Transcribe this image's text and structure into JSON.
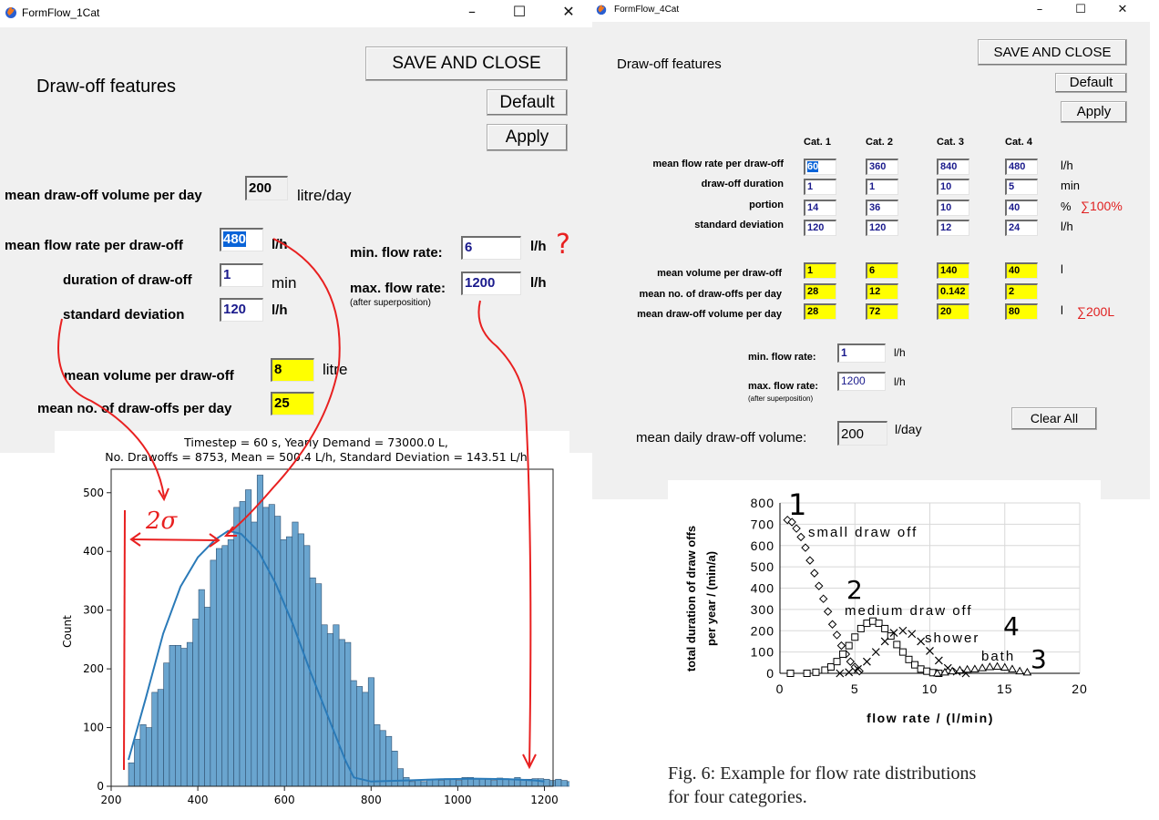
{
  "win1": {
    "title": "FormFlow_1Cat",
    "heading": "Draw-off features",
    "save_close": "SAVE AND CLOSE",
    "default": "Default",
    "apply": "Apply",
    "vol_day_label": "mean draw-off volume per day",
    "vol_day_value": "200",
    "vol_day_unit": "litre/day",
    "flow_label": "mean flow rate  per draw-off",
    "flow_value": "480",
    "flow_unit": "l/h",
    "dur_label": "duration of draw-off",
    "dur_value": "1",
    "dur_unit": "min",
    "std_label": "standard deviation",
    "std_value": "120",
    "std_unit": "l/h",
    "min_label": "min. flow rate:",
    "min_value": "6",
    "min_unit": "l/h",
    "max_label": "max. flow rate:",
    "max_sub": "(after superposition)",
    "max_value": "1200",
    "max_unit": "l/h",
    "meanvol_label": "mean volume per draw-off",
    "meanvol_value": "8",
    "meanvol_unit": "litre",
    "meanno_label": "mean no. of draw-offs per day",
    "meanno_value": "25"
  },
  "win2": {
    "title": "FormFlow_4Cat",
    "heading": "Draw-off features",
    "save_close": "SAVE AND CLOSE",
    "default": "Default",
    "apply": "Apply",
    "cat_headers": [
      "Cat. 1",
      "Cat. 2",
      "Cat. 3",
      "Cat. 4"
    ],
    "rows_top": [
      {
        "label": "mean flow rate per draw-off",
        "values": [
          "60",
          "360",
          "840",
          "480"
        ],
        "unit": "l/h",
        "note": ""
      },
      {
        "label": "draw-off duration",
        "values": [
          "1",
          "1",
          "10",
          "5"
        ],
        "unit": "min",
        "note": ""
      },
      {
        "label": "portion",
        "values": [
          "14",
          "36",
          "10",
          "40"
        ],
        "unit": "%",
        "note": "∑100%"
      },
      {
        "label": "standard deviation",
        "values": [
          "120",
          "120",
          "12",
          "24"
        ],
        "unit": "l/h",
        "note": ""
      }
    ],
    "rows_bottom": [
      {
        "label": "mean volume per draw-off",
        "values": [
          "1",
          "6",
          "140",
          "40"
        ],
        "unit": "l",
        "note": ""
      },
      {
        "label": "mean no. of draw-offs per day",
        "values": [
          "28",
          "12",
          "0.142",
          "2"
        ],
        "unit": "",
        "note": ""
      },
      {
        "label": "mean draw-off volume per day",
        "values": [
          "28",
          "72",
          "20",
          "80"
        ],
        "unit": "l",
        "note": "∑200L"
      }
    ],
    "min_label": "min. flow rate:",
    "min_value": "1",
    "min_unit": "l/h",
    "max_label": "max. flow rate:",
    "max_sub": "(after superposition)",
    "max_value": "1200",
    "max_unit": "l/h",
    "clear_all": "Clear All",
    "daily_label": "mean daily draw-off volume:",
    "daily_value": "200",
    "daily_unit": "l/day"
  },
  "histogram": {
    "title_line1": "Timestep = 60 s, Yearly Demand = 73000.0 L,",
    "title_line2": "No. Drawoffs = 8753, Mean = 500.4 L/h, Standard Deviation = 143.51 L/h",
    "ylabel": "Count",
    "annotation_2sigma": "2σ",
    "annotation_q": "?"
  },
  "paper_fig": {
    "ylabel_line1": "total duration of draw offs",
    "ylabel_line2": "per year / (min/a)",
    "xlabel": "flow rate / (l/min)",
    "labels": [
      "small draw off",
      "medium draw off",
      "shower",
      "bath"
    ],
    "handwritten": [
      "1",
      "2",
      "4",
      "3"
    ],
    "caption": "Fig. 6: Example for flow rate distributions for four categories."
  },
  "chart_data": [
    {
      "type": "bar",
      "title": "Timestep = 60 s, Yearly Demand = 73000.0 L, No. Drawoffs = 8753, Mean = 500.4 L/h, Standard Deviation = 143.51 L/h",
      "xlabel": "",
      "ylabel": "Count",
      "xlim": [
        200,
        1220
      ],
      "ylim": [
        0,
        540
      ],
      "xticks": [
        200,
        400,
        600,
        800,
        1000,
        1200
      ],
      "yticks": [
        0,
        100,
        200,
        300,
        400,
        500
      ],
      "bin_start": 240,
      "bin_width": 13.5,
      "values": [
        40,
        80,
        105,
        100,
        160,
        165,
        210,
        240,
        240,
        235,
        245,
        285,
        335,
        305,
        385,
        405,
        410,
        420,
        475,
        485,
        505,
        450,
        530,
        475,
        480,
        460,
        420,
        425,
        450,
        430,
        410,
        355,
        345,
        275,
        260,
        275,
        250,
        245,
        180,
        170,
        160,
        185,
        105,
        95,
        85,
        60,
        30,
        15,
        8,
        10,
        8,
        12,
        12,
        10,
        13,
        12,
        10,
        15,
        15,
        12,
        13,
        12,
        10,
        14,
        13,
        12,
        15,
        12,
        12,
        13,
        13,
        12,
        10,
        12,
        10,
        8
      ],
      "kde": [
        [
          240,
          45
        ],
        [
          280,
          150
        ],
        [
          320,
          260
        ],
        [
          360,
          340
        ],
        [
          400,
          390
        ],
        [
          440,
          420
        ],
        [
          470,
          435
        ],
        [
          500,
          430
        ],
        [
          540,
          400
        ],
        [
          580,
          345
        ],
        [
          620,
          275
        ],
        [
          660,
          195
        ],
        [
          700,
          120
        ],
        [
          740,
          45
        ],
        [
          760,
          15
        ],
        [
          800,
          8
        ],
        [
          880,
          10
        ],
        [
          960,
          12
        ],
        [
          1040,
          13
        ],
        [
          1120,
          12
        ],
        [
          1180,
          10
        ],
        [
          1200,
          8
        ]
      ],
      "bar_color": "#6aa5cf",
      "line_color": "#2a7ab8"
    },
    {
      "type": "scatter",
      "xlabel": "flow rate / (l/min)",
      "ylabel": "total duration of draw offs per year / (min/a)",
      "xlim": [
        0,
        20
      ],
      "ylim": [
        0,
        800
      ],
      "xticks": [
        0,
        5,
        10,
        15,
        20
      ],
      "yticks": [
        0,
        100,
        200,
        300,
        400,
        500,
        600,
        700,
        800
      ],
      "series": [
        {
          "name": "small draw off",
          "marker": "diamond",
          "x": [
            0.5,
            0.8,
            1.1,
            1.4,
            1.7,
            2.0,
            2.3,
            2.6,
            2.9,
            3.2,
            3.5,
            3.8,
            4.1,
            4.4,
            4.7,
            5.0,
            5.3
          ],
          "y": [
            720,
            710,
            680,
            640,
            590,
            530,
            470,
            410,
            350,
            290,
            230,
            180,
            130,
            90,
            55,
            30,
            10
          ]
        },
        {
          "name": "medium draw off",
          "marker": "square",
          "x": [
            0.7,
            1.8,
            2.4,
            3.0,
            3.4,
            3.8,
            4.2,
            4.6,
            5.0,
            5.4,
            5.8,
            6.2,
            6.6,
            7.0,
            7.4,
            7.8,
            8.2,
            8.6,
            9.0,
            9.4,
            9.8,
            10.2,
            10.6
          ],
          "y": [
            0,
            0,
            5,
            15,
            30,
            55,
            90,
            130,
            170,
            210,
            235,
            245,
            235,
            210,
            175,
            135,
            100,
            65,
            40,
            20,
            10,
            3,
            0
          ]
        },
        {
          "name": "shower",
          "marker": "x",
          "x": [
            4.0,
            4.6,
            5.2,
            5.8,
            6.4,
            7.0,
            7.6,
            8.2,
            8.8,
            9.4,
            10.0,
            10.6,
            11.2,
            11.8,
            12.4
          ],
          "y": [
            0,
            5,
            20,
            55,
            100,
            150,
            190,
            200,
            185,
            150,
            105,
            60,
            25,
            8,
            0
          ]
        },
        {
          "name": "bath",
          "marker": "triangle",
          "x": [
            10.5,
            11.0,
            11.5,
            12.0,
            12.5,
            13.0,
            13.5,
            14.0,
            14.5,
            15.0,
            15.5,
            16.0,
            16.5
          ],
          "y": [
            0,
            5,
            10,
            15,
            18,
            20,
            25,
            30,
            32,
            28,
            20,
            10,
            5
          ]
        }
      ]
    }
  ]
}
